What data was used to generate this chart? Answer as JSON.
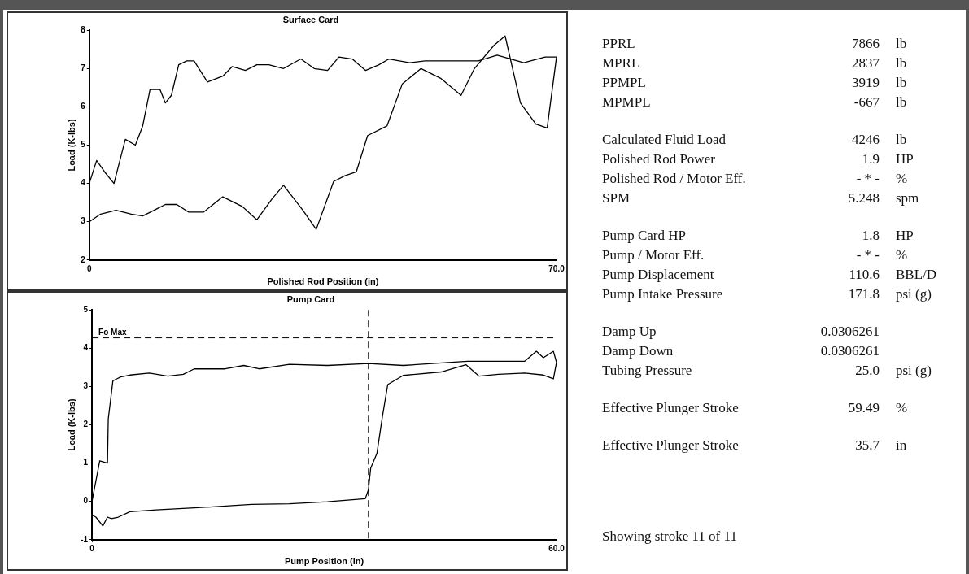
{
  "chart_data": [
    {
      "type": "line",
      "title": "Surface Card",
      "xlabel": "Polished Rod Position (in)",
      "ylabel": "Load (K-lbs)",
      "xlim": [
        0,
        70
      ],
      "xticks": [
        0,
        {
          "value": 70,
          "label": "70.0"
        }
      ],
      "ylim": [
        2,
        8
      ],
      "yticks": [
        2,
        3,
        4,
        5,
        6,
        7,
        8
      ],
      "grid": false,
      "series": [
        {
          "color": "#000000",
          "x": [
            0,
            1.1,
            2.3,
            3.7,
            5.4,
            6.9,
            8.0,
            9.1,
            10.6,
            11.4,
            12.3,
            13.4,
            14.6,
            15.7,
            17.7,
            20,
            21.4,
            23.4,
            25.1,
            26.9,
            29.1,
            31.7,
            33.7,
            35.7,
            37.4,
            39.4,
            41.4,
            43.4,
            44.9,
            48,
            50.3,
            55.4,
            58.3,
            61.1,
            65.1,
            68.3,
            70
          ],
          "values": [
            4.0,
            4.6,
            4.3,
            4.0,
            5.15,
            5.0,
            5.5,
            6.45,
            6.45,
            6.1,
            6.3,
            7.1,
            7.2,
            7.2,
            6.65,
            6.8,
            7.05,
            6.95,
            7.1,
            7.1,
            7.0,
            7.25,
            7.0,
            6.95,
            7.3,
            7.25,
            6.95,
            7.1,
            7.25,
            7.15,
            7.2,
            7.2,
            7.2,
            7.35,
            7.15,
            7.3,
            7.3
          ]
        },
        {
          "color": "#000000",
          "x": [
            0,
            1.7,
            4,
            6.3,
            8,
            9.7,
            11.4,
            13.1,
            14.9,
            17.1,
            20,
            22.9,
            25.1,
            27.4,
            29.1,
            32,
            34,
            36.6,
            38.3,
            40,
            41.7,
            44.6,
            46.9,
            49.7,
            52.6,
            55.7,
            57.7,
            60.6,
            62.3,
            64.6,
            66.9,
            68.6,
            70
          ],
          "values": [
            3.0,
            3.2,
            3.3,
            3.2,
            3.15,
            3.3,
            3.45,
            3.45,
            3.25,
            3.25,
            3.65,
            3.4,
            3.05,
            3.6,
            3.95,
            3.3,
            2.8,
            4.05,
            4.2,
            4.3,
            5.25,
            5.5,
            6.6,
            7.0,
            6.75,
            6.3,
            7.0,
            7.6,
            7.85,
            6.1,
            5.55,
            5.45,
            7.3
          ]
        }
      ]
    },
    {
      "type": "line",
      "title": "Pump Card",
      "xlabel": "Pump Position (in)",
      "ylabel": "Load (K-lbs)",
      "xlim": [
        0,
        60
      ],
      "xticks": [
        0,
        {
          "value": 60,
          "label": "60.0"
        }
      ],
      "ylim": [
        -1,
        5
      ],
      "yticks": [
        -1,
        0,
        1,
        2,
        3,
        4,
        5
      ],
      "grid": false,
      "ref_lines": [
        {
          "axis": "y",
          "value": 4.27,
          "label": "Fo Max",
          "line_style": "dashed",
          "color": "#000000"
        },
        {
          "axis": "x",
          "value": 35.7,
          "line_style": "dashed",
          "color": "#000000"
        }
      ],
      "series": [
        {
          "color": "#000000",
          "x": [
            0,
            1.0,
            2.0,
            2.1,
            2.7,
            3.2,
            3.7,
            4.9,
            7.4,
            9.8,
            11.8,
            13.2,
            17.2,
            19.6,
            21.6,
            25.5,
            30.4,
            35.7,
            40.2,
            48.5,
            55.9,
            57.4,
            58.3,
            59.6,
            60
          ],
          "values": [
            0,
            1.06,
            1.0,
            2.15,
            3.15,
            3.2,
            3.25,
            3.3,
            3.35,
            3.27,
            3.32,
            3.46,
            3.46,
            3.55,
            3.46,
            3.58,
            3.55,
            3.6,
            3.55,
            3.66,
            3.66,
            3.92,
            3.75,
            3.92,
            3.63
          ]
        },
        {
          "color": "#000000",
          "x": [
            0,
            0.5,
            1.4,
            2.0,
            2.5,
            3.4,
            4.9,
            8.3,
            13.2,
            20.6,
            25.5,
            30.4,
            35.3,
            35.7,
            36,
            36.8,
            37.5,
            38.2,
            40.2,
            45.1,
            48.3,
            50,
            52.5,
            55.9,
            58.3,
            59.6,
            60
          ],
          "values": [
            -0.36,
            -0.41,
            -0.64,
            -0.41,
            -0.45,
            -0.41,
            -0.27,
            -0.22,
            -0.17,
            -0.08,
            -0.06,
            -0.01,
            0.07,
            0.3,
            0.87,
            1.25,
            2.2,
            3.05,
            3.29,
            3.38,
            3.57,
            3.27,
            3.32,
            3.35,
            3.3,
            3.2,
            3.63
          ]
        }
      ]
    },
    {
      "type": "other",
      "annotations": [
        "PPRL\t7866\tlb",
        "MPRL\t2837\tlb",
        "PPMPL\t3919\tlb",
        "MPMPL\t-667\tlb",
        "Calculated Fluid Load\t4246\tlb",
        "Polished Rod Power\t1.9\tHP",
        "Polished Rod / Motor Eff.\t- * -\t%",
        "SPM\t5.248\tspm",
        "Pump Card HP\t1.8\tHP",
        "Pump / Motor Eff.\t- * -\t%",
        "Pump Displacement\t110.6\tBBL/D",
        "Pump Intake Pressure\t171.8\tpsi (g)",
        "Damp Up\t0.0306261",
        "Damp Down\t0.0306261",
        "Tubing Pressure\t25.0\tpsi (g)",
        "Effective Plunger Stroke\t59.49\t%",
        "Effective Plunger Stroke\t35.7\tin",
        "Showing stroke 11 of 11"
      ]
    }
  ]
}
